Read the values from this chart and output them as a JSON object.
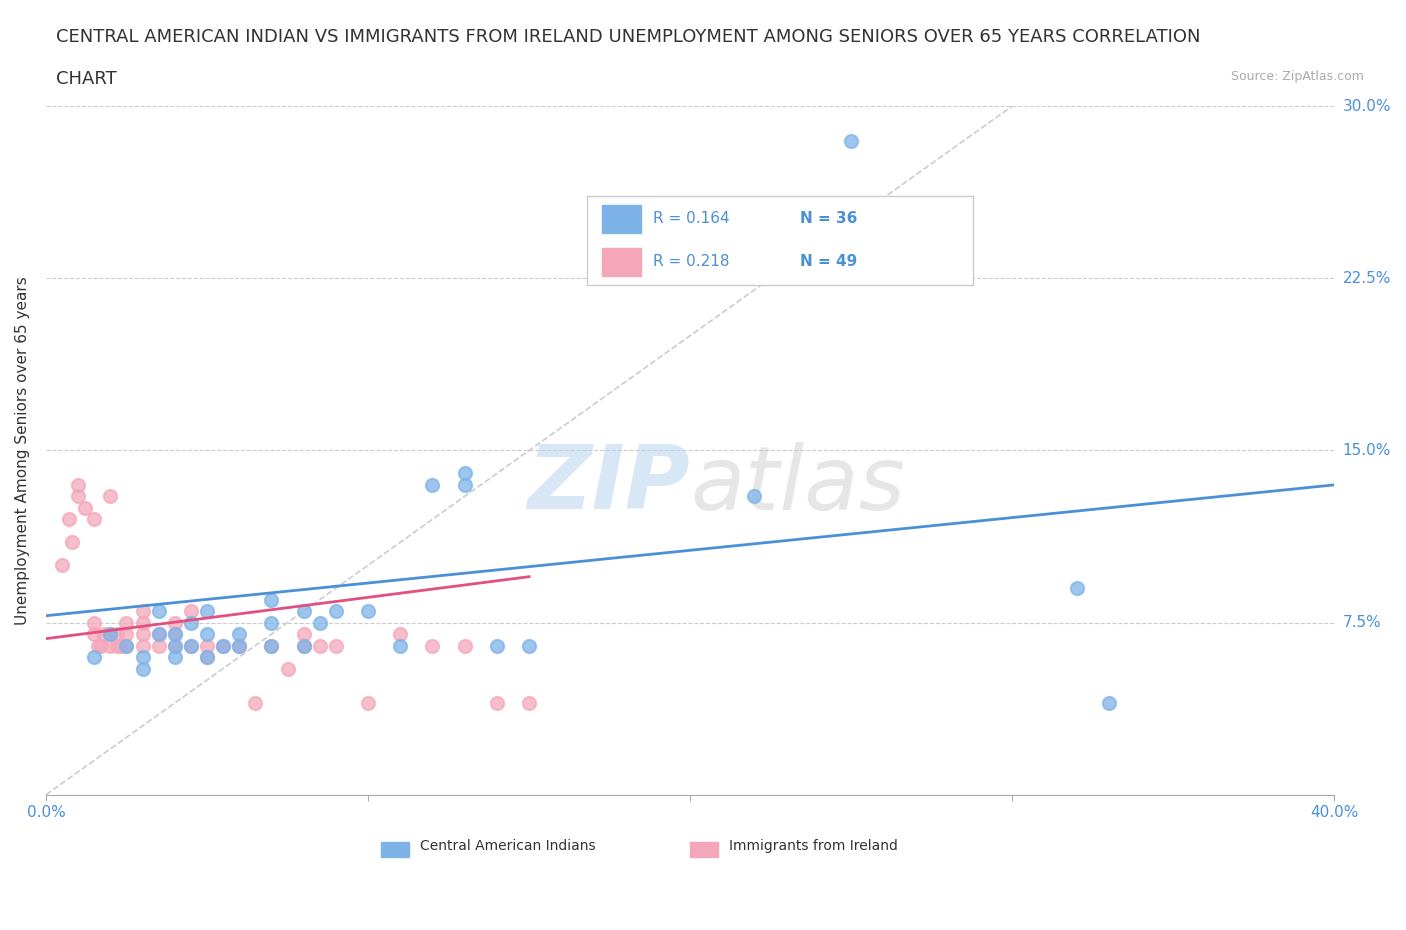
{
  "title_line1": "CENTRAL AMERICAN INDIAN VS IMMIGRANTS FROM IRELAND UNEMPLOYMENT AMONG SENIORS OVER 65 YEARS CORRELATION",
  "title_line2": "CHART",
  "source_text": "Source: ZipAtlas.com",
  "ylabel": "Unemployment Among Seniors over 65 years",
  "xmin": 0.0,
  "xmax": 0.4,
  "ymin": 0.0,
  "ymax": 0.3,
  "yticks": [
    0.0,
    0.075,
    0.15,
    0.225,
    0.3
  ],
  "ytick_labels": [
    "",
    "7.5%",
    "15.0%",
    "22.5%",
    "30.0%"
  ],
  "xticks": [
    0.0,
    0.1,
    0.2,
    0.3,
    0.4
  ],
  "xtick_labels": [
    "0.0%",
    "",
    "",
    "",
    "40.0%"
  ],
  "watermark_zip": "ZIP",
  "watermark_atlas": "atlas",
  "legend_r1": "R = 0.164",
  "legend_n1": "N = 36",
  "legend_r2": "R = 0.218",
  "legend_n2": "N = 49",
  "color_blue": "#7EB3E8",
  "color_pink": "#F4A7B9",
  "color_blue_line": "#4A90D9",
  "color_pink_line": "#E05080",
  "legend_label1": "Central American Indians",
  "legend_label2": "Immigrants from Ireland",
  "blue_scatter_x": [
    0.015,
    0.02,
    0.025,
    0.03,
    0.03,
    0.035,
    0.035,
    0.04,
    0.04,
    0.04,
    0.045,
    0.045,
    0.05,
    0.05,
    0.05,
    0.055,
    0.06,
    0.06,
    0.07,
    0.07,
    0.07,
    0.08,
    0.08,
    0.085,
    0.09,
    0.1,
    0.11,
    0.12,
    0.13,
    0.13,
    0.14,
    0.15,
    0.22,
    0.25,
    0.32,
    0.33
  ],
  "blue_scatter_y": [
    0.06,
    0.07,
    0.065,
    0.055,
    0.06,
    0.07,
    0.08,
    0.06,
    0.065,
    0.07,
    0.065,
    0.075,
    0.06,
    0.07,
    0.08,
    0.065,
    0.065,
    0.07,
    0.065,
    0.075,
    0.085,
    0.065,
    0.08,
    0.075,
    0.08,
    0.08,
    0.065,
    0.135,
    0.135,
    0.14,
    0.065,
    0.065,
    0.13,
    0.285,
    0.09,
    0.04
  ],
  "pink_scatter_x": [
    0.005,
    0.007,
    0.008,
    0.01,
    0.01,
    0.012,
    0.015,
    0.015,
    0.015,
    0.016,
    0.017,
    0.018,
    0.02,
    0.02,
    0.02,
    0.022,
    0.022,
    0.023,
    0.025,
    0.025,
    0.025,
    0.03,
    0.03,
    0.03,
    0.03,
    0.035,
    0.035,
    0.04,
    0.04,
    0.04,
    0.045,
    0.045,
    0.05,
    0.05,
    0.055,
    0.06,
    0.065,
    0.07,
    0.075,
    0.08,
    0.08,
    0.085,
    0.09,
    0.1,
    0.11,
    0.12,
    0.13,
    0.14,
    0.15
  ],
  "pink_scatter_y": [
    0.1,
    0.12,
    0.11,
    0.13,
    0.135,
    0.125,
    0.07,
    0.075,
    0.12,
    0.065,
    0.065,
    0.07,
    0.065,
    0.07,
    0.13,
    0.065,
    0.07,
    0.065,
    0.07,
    0.065,
    0.075,
    0.065,
    0.07,
    0.075,
    0.08,
    0.065,
    0.07,
    0.065,
    0.07,
    0.075,
    0.065,
    0.08,
    0.06,
    0.065,
    0.065,
    0.065,
    0.04,
    0.065,
    0.055,
    0.07,
    0.065,
    0.065,
    0.065,
    0.04,
    0.07,
    0.065,
    0.065,
    0.04,
    0.04
  ],
  "blue_line_x": [
    0.0,
    0.4
  ],
  "blue_line_y": [
    0.078,
    0.135
  ],
  "pink_line_x": [
    0.0,
    0.15
  ],
  "pink_line_y": [
    0.068,
    0.095
  ],
  "diag_line_x": [
    0.0,
    0.3
  ],
  "diag_line_y": [
    0.0,
    0.3
  ],
  "title_fontsize": 13,
  "axis_label_fontsize": 11,
  "tick_fontsize": 11
}
